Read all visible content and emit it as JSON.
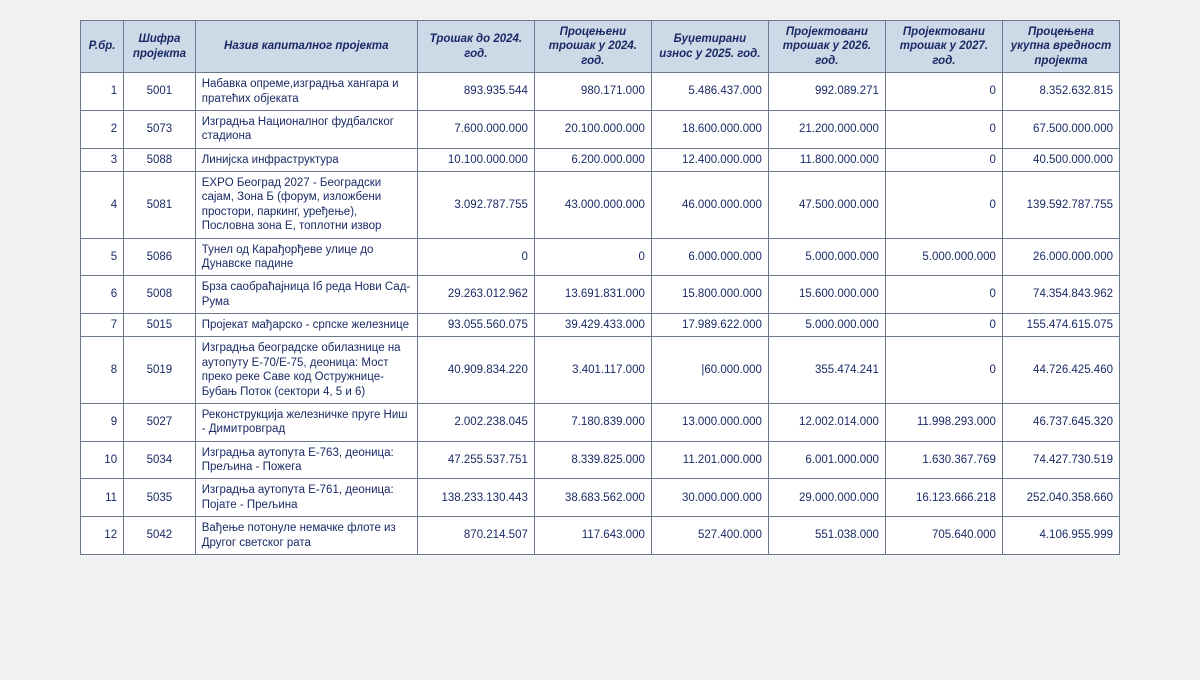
{
  "table": {
    "columns": [
      {
        "key": "idx",
        "label": "Р.бр.",
        "class": "col-idx"
      },
      {
        "key": "code",
        "label": "Шифра пројекта",
        "class": "col-code"
      },
      {
        "key": "name",
        "label": "Назив капиталног пројекта",
        "class": "col-name"
      },
      {
        "key": "c1",
        "label": "Трошак до 2024. год.",
        "class": "col-n"
      },
      {
        "key": "c2",
        "label": "Процењени трошак у 2024. год.",
        "class": "col-n"
      },
      {
        "key": "c3",
        "label": "Буџетирани износ у 2025. год.",
        "class": "col-n"
      },
      {
        "key": "c4",
        "label": "Пројектовани трошак у 2026. год.",
        "class": "col-n"
      },
      {
        "key": "c5",
        "label": "Пројектовани трошак у 2027. год.",
        "class": "col-n"
      },
      {
        "key": "c6",
        "label": "Процењена укупна вредност пројекта",
        "class": "col-n"
      }
    ],
    "rows": [
      {
        "idx": "1",
        "code": "5001",
        "name": "Набавка опреме,изградња хангара и пратећих објеката",
        "c1": "893.935.544",
        "c2": "980.171.000",
        "c3": "5.486.437.000",
        "c4": "992.089.271",
        "c5": "0",
        "c6": "8.352.632.815"
      },
      {
        "idx": "2",
        "code": "5073",
        "name": "Изградња Националног фудбалског стадиона",
        "c1": "7.600.000.000",
        "c2": "20.100.000.000",
        "c3": "18.600.000.000",
        "c4": "21.200.000.000",
        "c5": "0",
        "c6": "67.500.000.000"
      },
      {
        "idx": "3",
        "code": "5088",
        "name": "Линијска инфраструктура",
        "c1": "10.100.000.000",
        "c2": "6.200.000.000",
        "c3": "12.400.000.000",
        "c4": "11.800.000.000",
        "c5": "0",
        "c6": "40.500.000.000"
      },
      {
        "idx": "4",
        "code": "5081",
        "name": "EXPO Београд 2027 - Београдски сајам, Зона Б (форум, изложбени простори, паркинг, уређење), Пословна зона Е, топлотни извор",
        "c1": "3.092.787.755",
        "c2": "43.000.000.000",
        "c3": "46.000.000.000",
        "c4": "47.500.000.000",
        "c5": "0",
        "c6": "139.592.787.755"
      },
      {
        "idx": "5",
        "code": "5086",
        "name": "Тунел од Карађорђеве улице до Дунавске падине",
        "c1": "0",
        "c2": "0",
        "c3": "6.000.000.000",
        "c4": "5.000.000.000",
        "c5": "5.000.000.000",
        "c6": "26.000.000.000"
      },
      {
        "idx": "6",
        "code": "5008",
        "name": "Брза саобраћајница Iб реда Нови Сад-Рума",
        "c1": "29.263.012.962",
        "c2": "13.691.831.000",
        "c3": "15.800.000.000",
        "c4": "15.600.000.000",
        "c5": "0",
        "c6": "74.354.843.962"
      },
      {
        "idx": "7",
        "code": "5015",
        "name": "Пројекат мађарско - српске железнице",
        "c1": "93.055.560.075",
        "c2": "39.429.433.000",
        "c3": "17.989.622.000",
        "c4": "5.000.000.000",
        "c5": "0",
        "c6": "155.474.615.075"
      },
      {
        "idx": "8",
        "code": "5019",
        "name": "Изградња београдске обилазнице на аутопуту Е-70/Е-75, деоница: Мост преко реке Саве код Остружнице-Бубањ Поток (сектори 4, 5 и 6)",
        "c1": "40.909.834.220",
        "c2": "3.401.117.000",
        "c3": "|60.000.000",
        "c4": "355.474.241",
        "c5": "0",
        "c6": "44.726.425.460"
      },
      {
        "idx": "9",
        "code": "5027",
        "name": "Реконструкција железничке пруге Ниш - Димитровград",
        "c1": "2.002.238.045",
        "c2": "7.180.839.000",
        "c3": "13.000.000.000",
        "c4": "12.002.014.000",
        "c5": "11.998.293.000",
        "c6": "46.737.645.320"
      },
      {
        "idx": "10",
        "code": "5034",
        "name": "Изградња аутопута Е-763, деоница: Прељина - Пожега",
        "c1": "47.255.537.751",
        "c2": "8.339.825.000",
        "c3": "11.201.000.000",
        "c4": "6.001.000.000",
        "c5": "1.630.367.769",
        "c6": "74.427.730.519"
      },
      {
        "idx": "11",
        "code": "5035",
        "name": "Изградња аутопута Е-761, деоница: Појате - Прељина",
        "c1": "138.233.130.443",
        "c2": "38.683.562.000",
        "c3": "30.000.000.000",
        "c4": "29.000.000.000",
        "c5": "16.123.666.218",
        "c6": "252.040.358.660"
      },
      {
        "idx": "12",
        "code": "5042",
        "name": "Вађење потонуле немачке флоте из Другог светског рата",
        "c1": "870.214.507",
        "c2": "117.643.000",
        "c3": "527.400.000",
        "c4": "551.038.000",
        "c5": "705.640.000",
        "c6": "4.106.955.999"
      }
    ]
  }
}
